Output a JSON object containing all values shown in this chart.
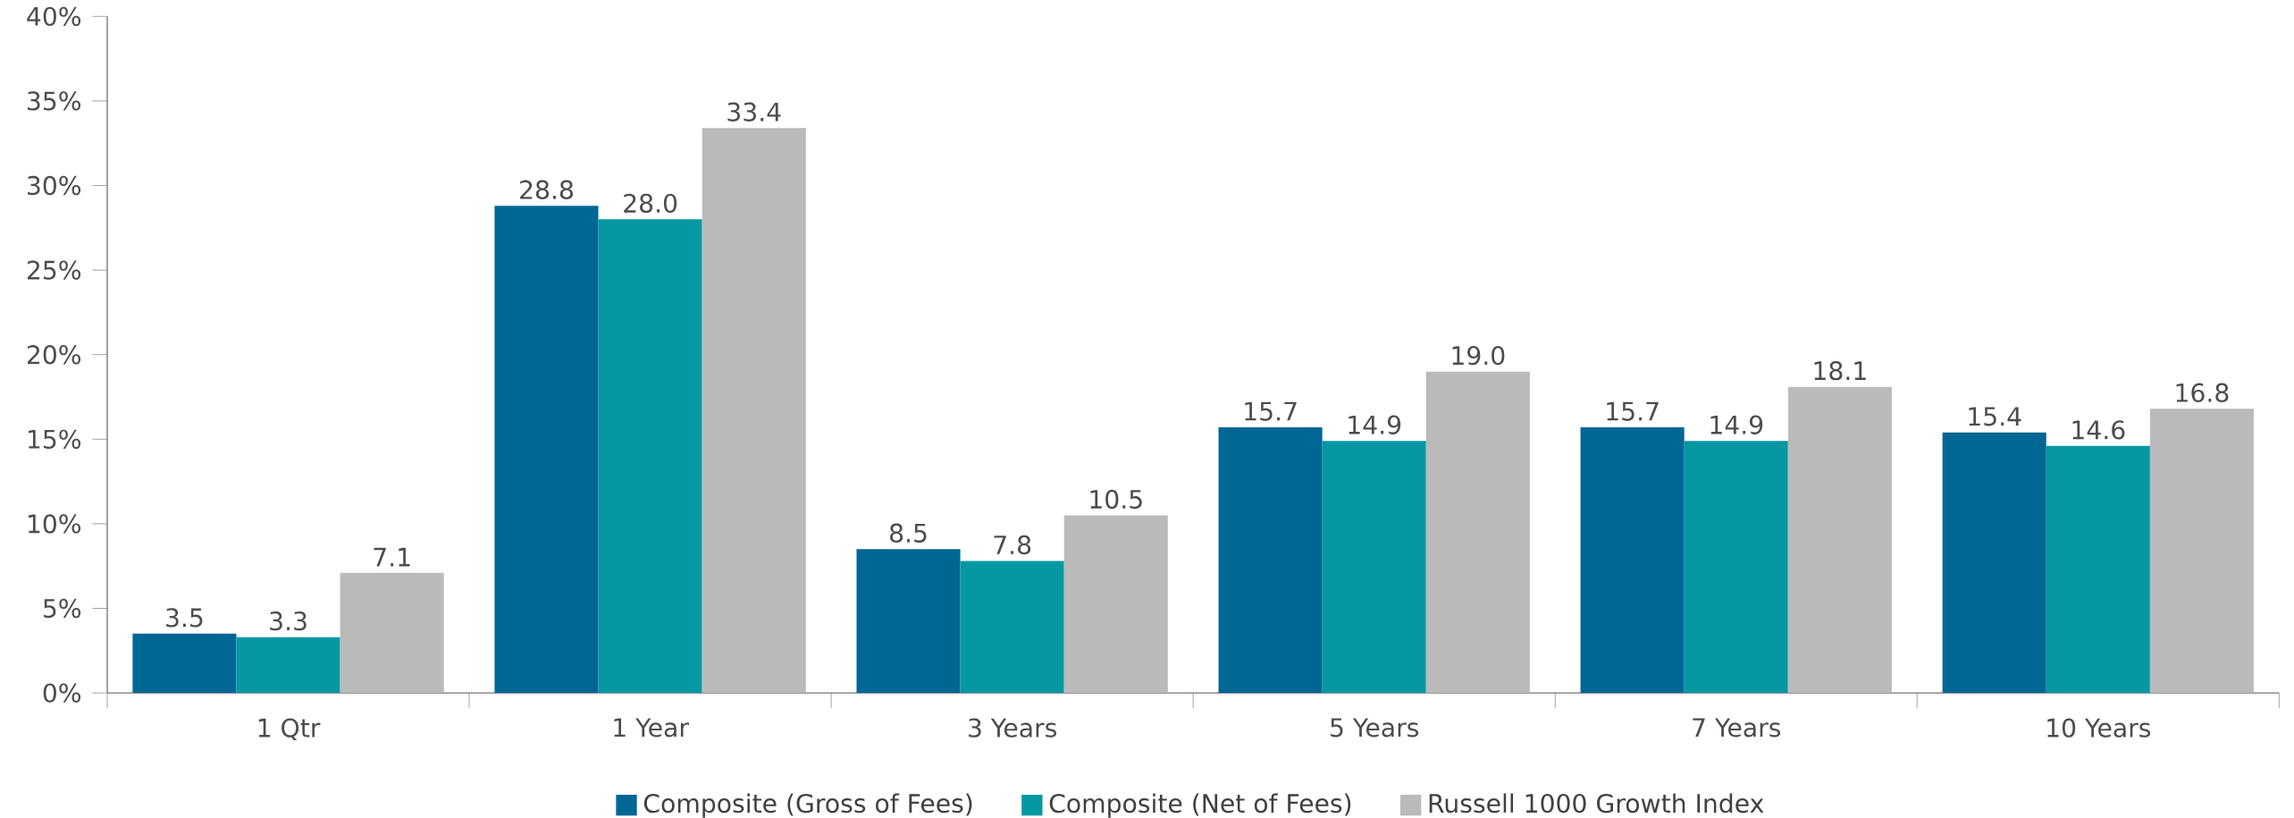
{
  "chart_data": {
    "type": "bar",
    "categories": [
      "1 Qtr",
      "1 Year",
      "3 Years",
      "5 Years",
      "7 Years",
      "10 Years"
    ],
    "series": [
      {
        "name": "Composite (Gross of Fees)",
        "color": "#006795",
        "values": [
          3.5,
          28.8,
          8.5,
          15.7,
          15.7,
          15.4
        ],
        "value_labels": [
          "3.5",
          "28.8",
          "8.5",
          "15.7",
          "15.7",
          "15.4"
        ]
      },
      {
        "name": "Composite (Net of Fees)",
        "color": "#0598a2",
        "values": [
          3.3,
          28.0,
          7.8,
          14.9,
          14.9,
          14.6
        ],
        "value_labels": [
          "3.3",
          "28.0",
          "7.8",
          "14.9",
          "14.9",
          "14.6"
        ]
      },
      {
        "name": "Russell 1000 Growth Index",
        "color": "#bababa",
        "values": [
          7.1,
          33.4,
          10.5,
          19.0,
          18.1,
          16.8
        ],
        "value_labels": [
          "7.1",
          "33.4",
          "10.5",
          "19.0",
          "18.1",
          "16.8"
        ]
      }
    ],
    "ylim": [
      0,
      40
    ],
    "yticks": [
      {
        "value": 0,
        "label": "0%"
      },
      {
        "value": 5,
        "label": "5%"
      },
      {
        "value": 10,
        "label": "10%"
      },
      {
        "value": 15,
        "label": "15%"
      },
      {
        "value": 20,
        "label": "20%"
      },
      {
        "value": 25,
        "label": "25%"
      },
      {
        "value": 30,
        "label": "30%"
      },
      {
        "value": 35,
        "label": "35%"
      },
      {
        "value": 40,
        "label": "40%"
      }
    ],
    "grid": false,
    "legend": "bottom"
  }
}
